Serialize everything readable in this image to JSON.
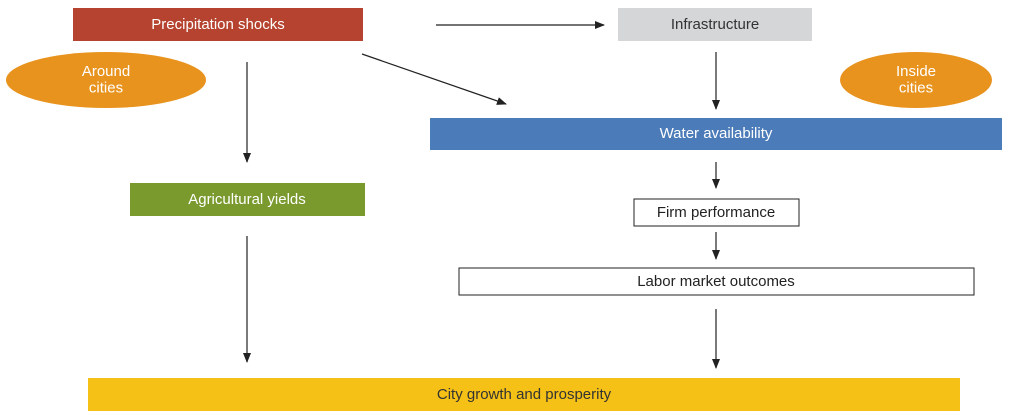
{
  "nodes": [
    {
      "id": "precip",
      "label": "Precipitation shocks"
    },
    {
      "id": "infra",
      "label": "Infrastructure"
    },
    {
      "id": "around",
      "label": "Around cities"
    },
    {
      "id": "inside",
      "label": "Inside cities"
    },
    {
      "id": "water",
      "label": "Water availability"
    },
    {
      "id": "agri",
      "label": "Agricultural yields"
    },
    {
      "id": "firm",
      "label": "Firm performance"
    },
    {
      "id": "labor",
      "label": "Labor market outcomes"
    },
    {
      "id": "city",
      "label": "City growth and prosperity"
    }
  ]
}
